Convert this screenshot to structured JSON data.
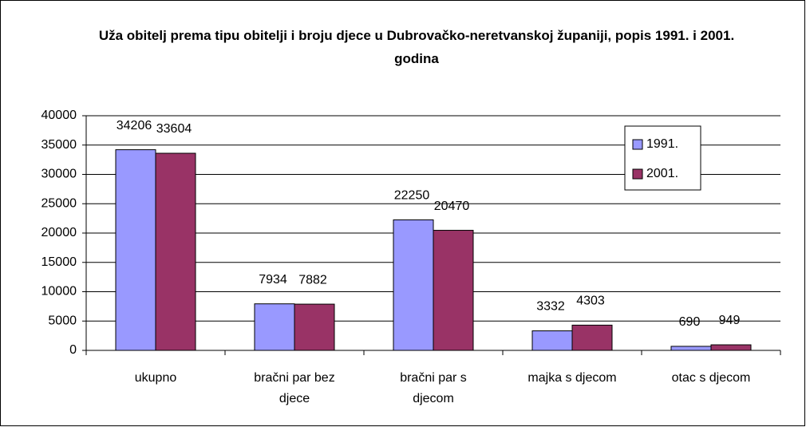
{
  "chart_data": {
    "type": "bar",
    "title": "Uža obitelj prema tipu obitelji i broju djece u Dubrovačko-neretvanskoj županiji, popis 1991. i 2001. godina",
    "categories": [
      "ukupno",
      "bračni par bez djece",
      "bračni par s djecom",
      "majka s djecom",
      "otac s djecom"
    ],
    "series": [
      {
        "name": "1991.",
        "color": "#9999ff",
        "values": [
          34206,
          7934,
          22250,
          3332,
          690
        ]
      },
      {
        "name": "2001.",
        "color": "#993366",
        "values": [
          33604,
          7882,
          20470,
          4303,
          949
        ]
      }
    ],
    "ylim": [
      0,
      40000
    ],
    "yticks": [
      0,
      5000,
      10000,
      15000,
      20000,
      25000,
      30000,
      35000,
      40000
    ],
    "grid": true,
    "legend": "right"
  }
}
